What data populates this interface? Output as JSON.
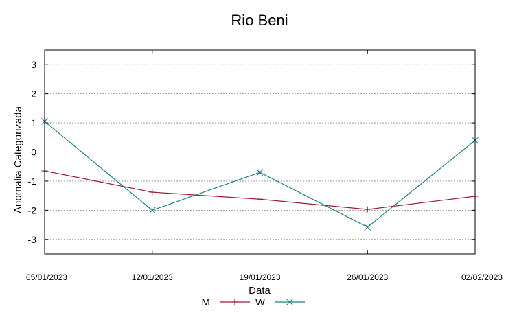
{
  "chart_data": {
    "type": "line",
    "title": "Rio Beni",
    "xlabel": "Data",
    "ylabel": "Anomalia Categorizada",
    "categories": [
      "05/01/2023",
      "12/01/2023",
      "19/01/2023",
      "26/01/2023",
      "02/02/2023"
    ],
    "yticks": [
      3,
      2,
      1,
      0,
      -1,
      -2,
      -3
    ],
    "ylim": [
      -3.5,
      3.5
    ],
    "grid": true,
    "legend": "bottom-center",
    "series": [
      {
        "name": "M",
        "values": [
          -0.65,
          -1.38,
          -1.62,
          -1.97,
          -1.52
        ],
        "color": "#9b1b30",
        "marker": "plus"
      },
      {
        "name": "W",
        "values": [
          1.05,
          -2.0,
          -0.7,
          -2.58,
          0.4
        ],
        "color": "#1f7f84",
        "marker": "cross"
      }
    ]
  }
}
